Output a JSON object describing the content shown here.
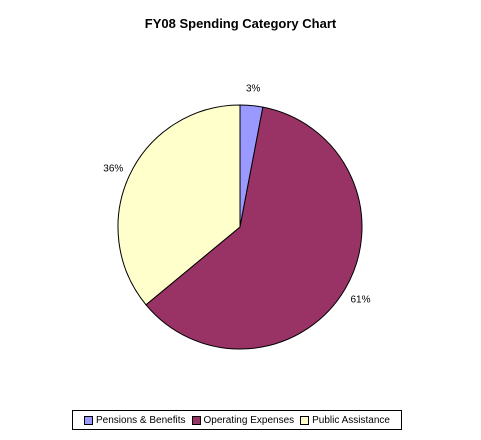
{
  "chart_data": {
    "type": "pie",
    "title": "FY08 Spending Category Chart",
    "categories": [
      "Pensions & Benefits",
      "Operating Expenses",
      "Public Assistance"
    ],
    "values": [
      3,
      61,
      36
    ],
    "labels": [
      "3%",
      "61%",
      "36%"
    ],
    "colors": [
      "#9999ff",
      "#993366",
      "#ffffcc"
    ],
    "legend_position": "bottom"
  }
}
